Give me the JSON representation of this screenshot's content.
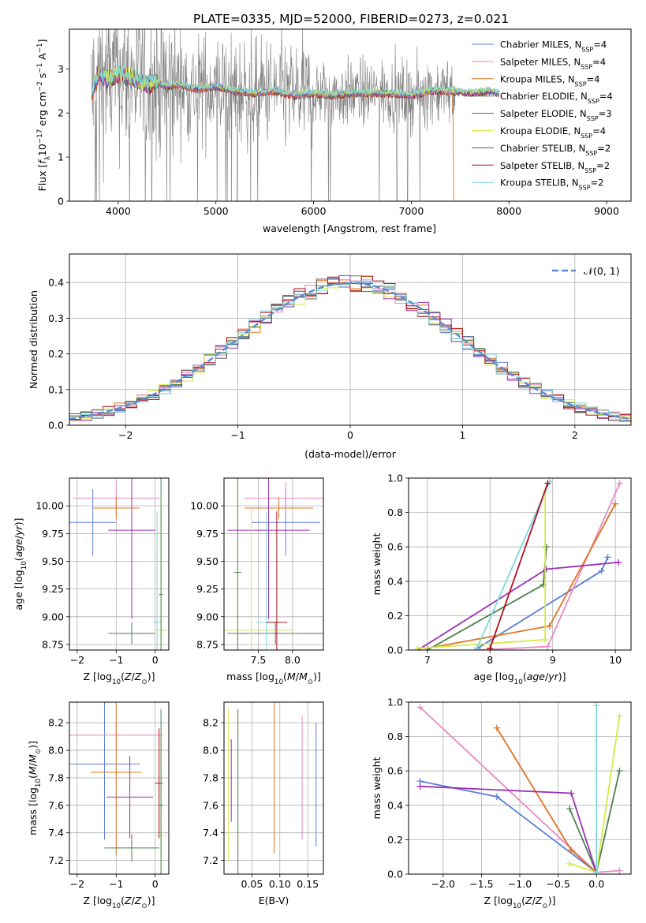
{
  "figure": {
    "title": "PLATE=0335, MJD=52000, FIBERID=0273, z=0.021"
  },
  "colors": {
    "chabrier_miles": "#5b7fd6",
    "salpeter_miles": "#e78ac3",
    "kroupa_miles": "#e07420",
    "chabrier_elodie": "#4c7f4c",
    "salpeter_elodie": "#9a32b4",
    "kroupa_elodie": "#d4ea46",
    "chabrier_stelib": "#555555",
    "salpeter_stelib": "#b01020",
    "kroupa_stelib": "#7fd8dc",
    "data_grey": "#808080",
    "normal_dash": "#5b8bd0"
  },
  "chart_data": [
    {
      "id": "spectrum",
      "type": "line",
      "xlabel": "wavelength [Angstrom, rest frame]",
      "ylabel": "Flux [f_λ 10^-17 erg cm^-2 s^-1 A^-1]",
      "xlim": [
        3500,
        9250
      ],
      "ylim": [
        0,
        3.9
      ],
      "xticks": [
        4000,
        5000,
        6000,
        7000,
        8000,
        9000
      ],
      "yticks": [
        0,
        1,
        2,
        3
      ],
      "grid": false,
      "legend_position": "top-right",
      "legend": [
        {
          "label": "Chabrier MILES, N",
          "sub": "SSP",
          "tail": "=4",
          "color_key": "chabrier_miles"
        },
        {
          "label": "Salpeter MILES, N",
          "sub": "SSP",
          "tail": "=4",
          "color_key": "salpeter_miles"
        },
        {
          "label": "Kroupa MILES, N",
          "sub": "SSP",
          "tail": "=4",
          "color_key": "kroupa_miles"
        },
        {
          "label": "Chabrier ELODIE, N",
          "sub": "SSP",
          "tail": "=4",
          "color_key": "chabrier_elodie"
        },
        {
          "label": "Salpeter ELODIE, N",
          "sub": "SSP",
          "tail": "=3",
          "color_key": "salpeter_elodie"
        },
        {
          "label": "Kroupa ELODIE, N",
          "sub": "SSP",
          "tail": "=4",
          "color_key": "kroupa_elodie"
        },
        {
          "label": "Chabrier STELIB, N",
          "sub": "SSP",
          "tail": "=2",
          "color_key": "chabrier_stelib"
        },
        {
          "label": "Salpeter STELIB, N",
          "sub": "SSP",
          "tail": "=2",
          "color_key": "salpeter_stelib"
        },
        {
          "label": "Kroupa STELIB, N",
          "sub": "SSP",
          "tail": "=2",
          "color_key": "kroupa_stelib"
        }
      ],
      "model_curve": {
        "x": [
          3720,
          3800,
          3900,
          4000,
          4100,
          4200,
          4300,
          4400,
          4500,
          4600,
          4800,
          5000,
          5200,
          5400,
          5600,
          5800,
          6000,
          6200,
          6400,
          6600,
          6800,
          7000,
          7200,
          7400,
          7600,
          7800,
          7900
        ],
        "y": [
          2.4,
          2.9,
          2.75,
          2.9,
          2.8,
          2.75,
          2.65,
          2.7,
          2.6,
          2.65,
          2.55,
          2.6,
          2.5,
          2.45,
          2.5,
          2.4,
          2.45,
          2.4,
          2.45,
          2.45,
          2.45,
          2.4,
          2.5,
          2.5,
          2.45,
          2.5,
          2.45
        ]
      },
      "noise_range": [
        3720,
        7450
      ]
    },
    {
      "id": "residuals",
      "type": "line",
      "xlabel": "(data-model)/error",
      "ylabel": "Normed distribution",
      "xlim": [
        -2.5,
        2.5
      ],
      "ylim": [
        0,
        0.48
      ],
      "xticks": [
        -2,
        -1,
        0,
        1,
        2
      ],
      "yticks": [
        0.0,
        0.1,
        0.2,
        0.3,
        0.4
      ],
      "grid": true,
      "legend_position": "top-right",
      "legend_label": "𝒩(0, 1)",
      "bin_width": 0.1
    },
    {
      "id": "age_vs_z",
      "type": "scatter",
      "xlabel": "Z [log10(Z/Z⊙)]",
      "ylabel": "age [log10(age/yr)]",
      "xlim": [
        -2.2,
        0.35
      ],
      "ylim": [
        8.7,
        10.25
      ],
      "xticks": [
        -2,
        -1,
        0
      ],
      "yticks": [
        8.75,
        9.0,
        9.25,
        9.5,
        9.75,
        10.0
      ],
      "grid": true,
      "points": [
        {
          "x": -1.6,
          "y": 9.85,
          "xerr": 0.6,
          "yerr": 0.3,
          "color_key": "chabrier_miles"
        },
        {
          "x": -1.0,
          "y": 10.07,
          "xerr": 1.1,
          "yerr": 0.15,
          "color_key": "salpeter_miles"
        },
        {
          "x": -1.0,
          "y": 9.98,
          "xerr": 0.6,
          "yerr": 0.1,
          "color_key": "kroupa_miles"
        },
        {
          "x": -0.6,
          "y": 8.85,
          "xerr": 0.6,
          "yerr": 0.1,
          "color_key": "chabrier_elodie"
        },
        {
          "x": -0.6,
          "y": 9.78,
          "xerr": 0.6,
          "yerr": 0.8,
          "color_key": "salpeter_elodie"
        },
        {
          "x": 0.15,
          "y": 8.88,
          "xerr": 0.15,
          "yerr": 1.1,
          "color_key": "kroupa_elodie"
        },
        {
          "x": 0.05,
          "y": 8.95,
          "xerr": 0.1,
          "yerr": 1.0,
          "color_key": "kroupa_stelib"
        },
        {
          "x": 0.15,
          "y": 9.2,
          "xerr": 0.05,
          "yerr": 1.1,
          "color_key": "chabrier_elodie"
        }
      ]
    },
    {
      "id": "age_vs_mass",
      "type": "scatter",
      "xlabel": "mass [log10(M/M⊙)]",
      "ylabel": "",
      "xlim": [
        7.0,
        8.45
      ],
      "ylim": [
        8.7,
        10.25
      ],
      "xticks": [
        7.5,
        8.0
      ],
      "yticks": [
        8.75,
        9.0,
        9.25,
        9.5,
        9.75,
        10.0
      ],
      "grid": true,
      "points": [
        {
          "x": 7.9,
          "y": 9.85,
          "xerr": 0.5,
          "yerr": 0.3,
          "color_key": "chabrier_miles"
        },
        {
          "x": 7.9,
          "y": 10.07,
          "xerr": 0.6,
          "yerr": 0.15,
          "color_key": "salpeter_miles"
        },
        {
          "x": 7.8,
          "y": 9.98,
          "xerr": 0.5,
          "yerr": 0.1,
          "color_key": "kroupa_miles"
        },
        {
          "x": 7.75,
          "y": 8.85,
          "xerr": 0.7,
          "yerr": 0.1,
          "color_key": "chabrier_elodie"
        },
        {
          "x": 7.65,
          "y": 9.78,
          "xerr": 0.6,
          "yerr": 0.8,
          "color_key": "salpeter_elodie"
        },
        {
          "x": 7.4,
          "y": 8.88,
          "xerr": 0.6,
          "yerr": 1.1,
          "color_key": "kroupa_elodie"
        },
        {
          "x": 7.62,
          "y": 8.95,
          "xerr": 0.15,
          "yerr": 1.0,
          "color_key": "kroupa_stelib"
        },
        {
          "x": 7.77,
          "y": 8.95,
          "xerr": 0.15,
          "yerr": 1.0,
          "color_key": "salpeter_stelib"
        },
        {
          "x": 7.2,
          "y": 9.4,
          "xerr": 0.05,
          "yerr": 1.0,
          "color_key": "chabrier_elodie"
        }
      ]
    },
    {
      "id": "massweight_vs_age",
      "type": "line",
      "xlabel": "age [log10(age/yr)]",
      "ylabel": "mass weight",
      "xlim": [
        6.7,
        10.25
      ],
      "ylim": [
        0,
        1.0
      ],
      "xticks": [
        7,
        8,
        9,
        10
      ],
      "yticks": [
        0.0,
        0.2,
        0.4,
        0.6,
        0.8,
        1.0
      ],
      "grid": true,
      "series": [
        {
          "color_key": "chabrier_miles",
          "x": [
            7.8,
            9.78,
            9.88
          ],
          "y": [
            0.01,
            0.46,
            0.54
          ]
        },
        {
          "color_key": "salpeter_miles",
          "x": [
            7.8,
            8.92,
            10.07
          ],
          "y": [
            0.0,
            0.02,
            0.97
          ]
        },
        {
          "color_key": "kroupa_miles",
          "x": [
            7.0,
            8.95,
            10.0
          ],
          "y": [
            0.01,
            0.14,
            0.85
          ]
        },
        {
          "color_key": "chabrier_elodie",
          "x": [
            7.0,
            8.85,
            8.9
          ],
          "y": [
            0.0,
            0.38,
            0.6
          ]
        },
        {
          "color_key": "salpeter_elodie",
          "x": [
            6.85,
            8.9,
            10.05
          ],
          "y": [
            0.0,
            0.47,
            0.51
          ]
        },
        {
          "color_key": "kroupa_elodie",
          "x": [
            6.85,
            8.88,
            8.88
          ],
          "y": [
            0.01,
            0.06,
            0.92
          ]
        },
        {
          "color_key": "kroupa_stelib",
          "x": [
            7.78,
            8.95
          ],
          "y": [
            0.0,
            0.98
          ]
        },
        {
          "color_key": "salpeter_stelib",
          "x": [
            8.0,
            8.92
          ],
          "y": [
            0.01,
            0.97
          ]
        }
      ]
    },
    {
      "id": "mass_vs_z",
      "type": "scatter",
      "xlabel": "Z [log10(Z/Z⊙)]",
      "ylabel": "mass [log10(M/M⊙)]",
      "xlim": [
        -2.2,
        0.35
      ],
      "ylim": [
        7.1,
        8.35
      ],
      "xticks": [
        -2,
        -1,
        0
      ],
      "yticks": [
        7.2,
        7.4,
        7.6,
        7.8,
        8.0,
        8.2
      ],
      "grid": true,
      "points": [
        {
          "x": -1.3,
          "y": 7.9,
          "xerr": 0.9,
          "yerr": 0.55,
          "color_key": "chabrier_miles"
        },
        {
          "x": -1.0,
          "y": 8.11,
          "xerr": 1.2,
          "yerr": 0.1,
          "color_key": "salpeter_miles"
        },
        {
          "x": -1.0,
          "y": 7.84,
          "xerr": 0.65,
          "yerr": 0.6,
          "color_key": "kroupa_miles"
        },
        {
          "x": -0.6,
          "y": 7.29,
          "xerr": 0.7,
          "yerr": 0.1,
          "color_key": "chabrier_elodie"
        },
        {
          "x": -0.65,
          "y": 7.66,
          "xerr": 0.6,
          "yerr": 0.3,
          "color_key": "salpeter_elodie"
        },
        {
          "x": 0.15,
          "y": 7.38,
          "xerr": 0.15,
          "yerr": 0.7,
          "color_key": "kroupa_elodie"
        },
        {
          "x": 0.1,
          "y": 7.6,
          "xerr": 0.1,
          "yerr": 0.2,
          "color_key": "kroupa_stelib"
        },
        {
          "x": 0.1,
          "y": 7.76,
          "xerr": 0.1,
          "yerr": 0.4,
          "color_key": "salpeter_stelib"
        },
        {
          "x": 0.15,
          "y": 7.6,
          "xerr": 0.05,
          "yerr": 0.7,
          "color_key": "chabrier_elodie"
        }
      ]
    },
    {
      "id": "mass_vs_ebv",
      "type": "scatter",
      "xlabel": "E(B-V)",
      "ylabel": "",
      "xlim": [
        0.0,
        0.178
      ],
      "ylim": [
        7.1,
        8.35
      ],
      "xticks": [
        0.05,
        0.1,
        0.15
      ],
      "yticks": [
        7.2,
        7.4,
        7.6,
        7.8,
        8.0,
        8.2
      ],
      "grid": true,
      "points": [
        {
          "x": 0.165,
          "y": 7.75,
          "yerr": 0.45,
          "color_key": "chabrier_miles"
        },
        {
          "x": 0.14,
          "y": 7.8,
          "yerr": 0.45,
          "color_key": "salpeter_miles"
        },
        {
          "x": 0.09,
          "y": 7.8,
          "yerr": 0.55,
          "color_key": "kroupa_miles"
        },
        {
          "x": 0.025,
          "y": 7.7,
          "yerr": 0.6,
          "color_key": "chabrier_elodie"
        },
        {
          "x": 0.013,
          "y": 7.78,
          "yerr": 0.3,
          "color_key": "salpeter_elodie"
        },
        {
          "x": 0.008,
          "y": 7.75,
          "yerr": 0.55,
          "color_key": "kroupa_elodie"
        }
      ]
    },
    {
      "id": "massweight_vs_z",
      "type": "line",
      "xlabel": "Z [log10(Z/Z⊙)]",
      "ylabel": "mass weight",
      "xlim": [
        -2.45,
        0.45
      ],
      "ylim": [
        0,
        1.0
      ],
      "xticks": [
        -2.0,
        -1.5,
        -1.0,
        -0.5,
        0.0
      ],
      "yticks": [
        0.0,
        0.2,
        0.4,
        0.6,
        0.8,
        1.0
      ],
      "grid": true,
      "series": [
        {
          "color_key": "chabrier_miles",
          "x": [
            -2.3,
            -1.3,
            0.0
          ],
          "y": [
            0.54,
            0.45,
            0.01
          ]
        },
        {
          "color_key": "salpeter_miles",
          "x": [
            -2.3,
            0.0,
            0.3
          ],
          "y": [
            0.97,
            0.01,
            0.02
          ]
        },
        {
          "color_key": "kroupa_miles",
          "x": [
            -1.3,
            -0.33,
            0.0
          ],
          "y": [
            0.85,
            0.14,
            0.01
          ]
        },
        {
          "color_key": "chabrier_elodie",
          "x": [
            -0.35,
            0.0,
            0.3
          ],
          "y": [
            0.38,
            0.01,
            0.6
          ]
        },
        {
          "color_key": "salpeter_elodie",
          "x": [
            -2.3,
            -0.33,
            0.0
          ],
          "y": [
            0.51,
            0.47,
            0.01
          ]
        },
        {
          "color_key": "kroupa_elodie",
          "x": [
            -0.35,
            0.0,
            0.3
          ],
          "y": [
            0.06,
            0.01,
            0.92
          ]
        },
        {
          "color_key": "kroupa_stelib",
          "x": [
            0.0,
            0.0
          ],
          "y": [
            0.98,
            0.01
          ]
        }
      ]
    }
  ]
}
